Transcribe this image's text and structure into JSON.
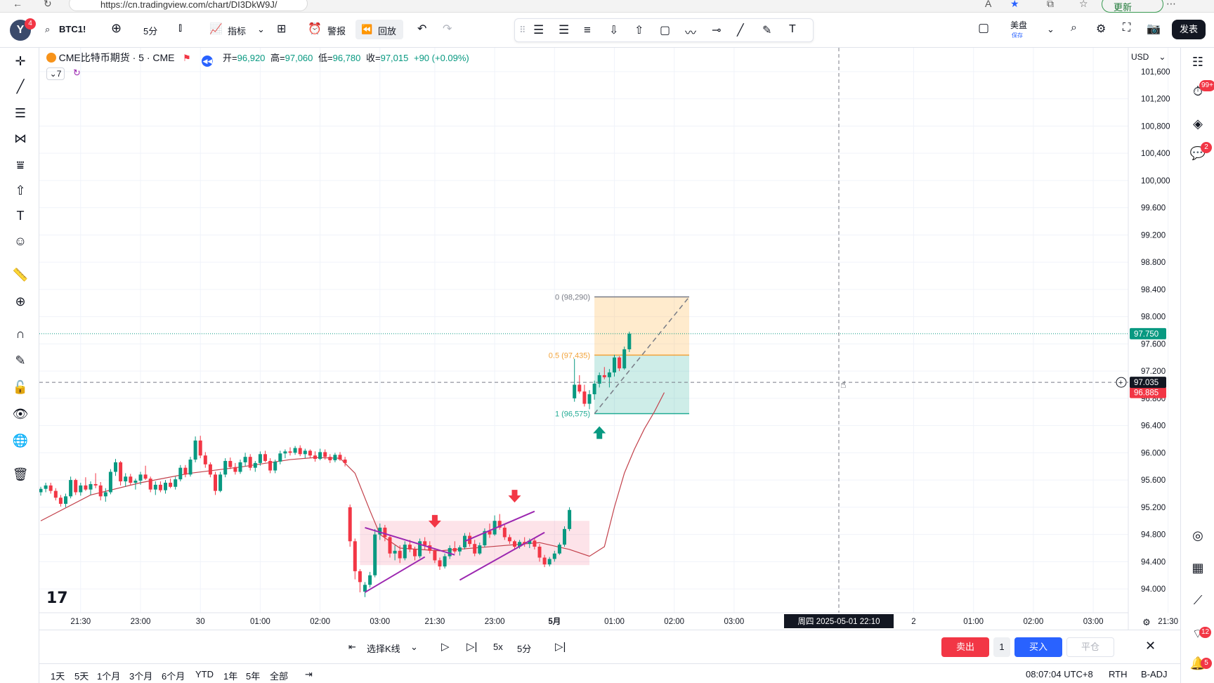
{
  "browser": {
    "url": "https://cn.tradingview.com/chart/DI3DkW9J/",
    "update_label": "更新"
  },
  "header": {
    "avatar_letter": "Y",
    "avatar_badge": "4",
    "symbol": "BTC1!",
    "interval": "5分",
    "indicators_label": "指标",
    "alert_label": "警报",
    "replay_label": "回放",
    "session_label": "美盘",
    "session_sub": "保存",
    "publish_label": "发表"
  },
  "legend": {
    "title": "CME比特币期货 · 5 · CME",
    "open_label": "开=",
    "open": "96,920",
    "high_label": "高=",
    "high": "97,060",
    "low_label": "低=",
    "low": "96,780",
    "close_label": "收=",
    "close": "97,015",
    "change": "+90 (+0.09%)",
    "indicator_count": "7"
  },
  "right_sidebar": {
    "badge_top": "99+",
    "badge_chat": "2",
    "badge_feed": "12",
    "badge_bell": "5"
  },
  "chart_data": {
    "type": "candlestick",
    "currency": "USD",
    "y_ticks": [
      94000,
      94400,
      94800,
      95200,
      95600,
      96000,
      96400,
      96800,
      97200,
      97600,
      98000,
      98400,
      98800,
      99200,
      99600,
      100000,
      100400,
      100800,
      101200,
      101600
    ],
    "y_tick_labels": [
      "94.000",
      "94.400",
      "94.800",
      "95.200",
      "95.600",
      "96.000",
      "96.400",
      "96.800",
      "97.200",
      "97.600",
      "98.000",
      "98.400",
      "98.800",
      "99.200",
      "99.600",
      "100,000",
      "100,400",
      "100,800",
      "101,200",
      "101,600"
    ],
    "ylim": [
      93650,
      101950
    ],
    "x_ticks": [
      {
        "bar": 8,
        "label": "21:30"
      },
      {
        "bar": 20,
        "label": "23:00"
      },
      {
        "bar": 32,
        "label": "30"
      },
      {
        "bar": 44,
        "label": "01:00"
      },
      {
        "bar": 56,
        "label": "02:00"
      },
      {
        "bar": 68,
        "label": "03:00"
      },
      {
        "bar": 79,
        "label": "21:30"
      },
      {
        "bar": 91,
        "label": "23:00"
      },
      {
        "bar": 103,
        "label": "5月"
      },
      {
        "bar": 115,
        "label": "01:00"
      },
      {
        "bar": 127,
        "label": "02:00"
      },
      {
        "bar": 139,
        "label": "03:00"
      },
      {
        "bar": 175,
        "label": "2"
      },
      {
        "bar": 187,
        "label": "01:00"
      },
      {
        "bar": 199,
        "label": "02:00"
      },
      {
        "bar": 211,
        "label": "03:00"
      },
      {
        "bar": 226,
        "label": "21:30"
      }
    ],
    "crosshair": {
      "bar": 160,
      "price": 97035,
      "price_label": "97.035",
      "time_label": "周四 2025-05-01   22:10"
    },
    "last_price": {
      "value": 97750,
      "label": "97.750"
    },
    "ma_price": {
      "value": 96885,
      "label": "96.885"
    },
    "candles": [
      [
        95420,
        95500,
        95370,
        95470
      ],
      [
        95470,
        95560,
        95420,
        95520
      ],
      [
        95520,
        95560,
        95400,
        95440
      ],
      [
        95440,
        95480,
        95300,
        95340
      ],
      [
        95340,
        95380,
        95210,
        95250
      ],
      [
        95250,
        95400,
        95200,
        95360
      ],
      [
        95360,
        95650,
        95330,
        95600
      ],
      [
        95600,
        95620,
        95380,
        95420
      ],
      [
        95420,
        95560,
        95370,
        95520
      ],
      [
        95520,
        95640,
        95440,
        95460
      ],
      [
        95460,
        95580,
        95380,
        95540
      ],
      [
        95540,
        95700,
        95480,
        95520
      ],
      [
        95520,
        95570,
        95300,
        95360
      ],
      [
        95360,
        95480,
        95280,
        95420
      ],
      [
        95420,
        95760,
        95390,
        95720
      ],
      [
        95720,
        95910,
        95660,
        95860
      ],
      [
        95860,
        95880,
        95520,
        95580
      ],
      [
        95580,
        95700,
        95500,
        95650
      ],
      [
        95650,
        95690,
        95520,
        95560
      ],
      [
        95560,
        95620,
        95460,
        95590
      ],
      [
        95590,
        95720,
        95530,
        95680
      ],
      [
        95680,
        95810,
        95600,
        95620
      ],
      [
        95620,
        95650,
        95420,
        95460
      ],
      [
        95460,
        95580,
        95380,
        95530
      ],
      [
        95530,
        95580,
        95420,
        95450
      ],
      [
        95450,
        95600,
        95400,
        95560
      ],
      [
        95560,
        95620,
        95480,
        95500
      ],
      [
        95500,
        95650,
        95460,
        95610
      ],
      [
        95610,
        95820,
        95580,
        95780
      ],
      [
        95780,
        95820,
        95640,
        95680
      ],
      [
        95680,
        95940,
        95650,
        95900
      ],
      [
        95900,
        96240,
        95860,
        96180
      ],
      [
        96180,
        96250,
        95920,
        95960
      ],
      [
        95960,
        96010,
        95780,
        95830
      ],
      [
        95830,
        95860,
        95640,
        95680
      ],
      [
        95680,
        95720,
        95380,
        95440
      ],
      [
        95440,
        95720,
        95420,
        95680
      ],
      [
        95680,
        95920,
        95640,
        95880
      ],
      [
        95880,
        95930,
        95760,
        95790
      ],
      [
        95790,
        95850,
        95680,
        95720
      ],
      [
        95720,
        95900,
        95690,
        95860
      ],
      [
        95860,
        96000,
        95800,
        95940
      ],
      [
        95940,
        95980,
        95740,
        95780
      ],
      [
        95780,
        95880,
        95720,
        95850
      ],
      [
        95850,
        96020,
        95810,
        95980
      ],
      [
        95980,
        96030,
        95860,
        95880
      ],
      [
        95880,
        95920,
        95700,
        95740
      ],
      [
        95740,
        95900,
        95700,
        95870
      ],
      [
        95870,
        96030,
        95830,
        95990
      ],
      [
        95990,
        96050,
        95920,
        96020
      ],
      [
        96020,
        96080,
        95960,
        96000
      ],
      [
        96000,
        96100,
        95970,
        96070
      ],
      [
        96070,
        96110,
        95950,
        95980
      ],
      [
        95980,
        96060,
        95920,
        96030
      ],
      [
        96030,
        96050,
        95920,
        95960
      ],
      [
        95960,
        96020,
        95870,
        95910
      ],
      [
        95910,
        96060,
        95890,
        96010
      ],
      [
        96010,
        96050,
        95900,
        95940
      ],
      [
        95940,
        95980,
        95850,
        95890
      ],
      [
        95890,
        96000,
        95860,
        95970
      ],
      [
        95970,
        96010,
        95880,
        95900
      ],
      [
        95900,
        95940,
        95800,
        95850
      ],
      [
        95200,
        95240,
        94620,
        94700
      ],
      [
        94700,
        94740,
        94140,
        94260
      ],
      [
        94260,
        94290,
        93950,
        94100
      ],
      [
        93960,
        94100,
        93880,
        94060
      ],
      [
        94060,
        94250,
        94020,
        94200
      ],
      [
        94200,
        94880,
        94170,
        94800
      ],
      [
        94800,
        94960,
        94720,
        94900
      ],
      [
        94900,
        94940,
        94700,
        94760
      ],
      [
        94760,
        94800,
        94460,
        94520
      ],
      [
        94520,
        94640,
        94420,
        94560
      ],
      [
        94560,
        94640,
        94380,
        94450
      ],
      [
        94450,
        94700,
        94420,
        94650
      ],
      [
        94650,
        94720,
        94540,
        94580
      ],
      [
        94580,
        94620,
        94420,
        94480
      ],
      [
        94480,
        94740,
        94450,
        94700
      ],
      [
        94700,
        94760,
        94580,
        94640
      ],
      [
        94640,
        94700,
        94520,
        94560
      ],
      [
        94560,
        94600,
        94380,
        94420
      ],
      [
        94420,
        94460,
        94280,
        94330
      ],
      [
        94330,
        94520,
        94300,
        94480
      ],
      [
        94480,
        94640,
        94440,
        94600
      ],
      [
        94600,
        94700,
        94520,
        94550
      ],
      [
        94550,
        94640,
        94490,
        94610
      ],
      [
        94610,
        94820,
        94580,
        94780
      ],
      [
        94780,
        94830,
        94620,
        94660
      ],
      [
        94660,
        94720,
        94480,
        94520
      ],
      [
        94520,
        94680,
        94500,
        94640
      ],
      [
        94640,
        94890,
        94610,
        94850
      ],
      [
        94850,
        94960,
        94750,
        94800
      ],
      [
        94800,
        95080,
        94780,
        95000
      ],
      [
        95000,
        95100,
        94870,
        94900
      ],
      [
        94900,
        94940,
        94720,
        94760
      ],
      [
        94760,
        94800,
        94660,
        94700
      ],
      [
        94700,
        94720,
        94580,
        94620
      ],
      [
        94620,
        94720,
        94590,
        94690
      ],
      [
        94690,
        94760,
        94620,
        94660
      ],
      [
        94660,
        94740,
        94600,
        94710
      ],
      [
        94710,
        94740,
        94580,
        94620
      ],
      [
        94620,
        94660,
        94400,
        94460
      ],
      [
        94460,
        94500,
        94320,
        94360
      ],
      [
        94360,
        94470,
        94330,
        94440
      ],
      [
        94440,
        94560,
        94400,
        94520
      ],
      [
        94520,
        94680,
        94500,
        94650
      ],
      [
        94650,
        94920,
        94620,
        94880
      ],
      [
        94880,
        95200,
        94850,
        95160
      ],
      [
        96800,
        97380,
        96750,
        97000
      ],
      [
        97000,
        97140,
        96870,
        96900
      ],
      [
        96900,
        97000,
        96680,
        96720
      ],
      [
        96720,
        96920,
        96640,
        96860
      ],
      [
        96860,
        97060,
        96780,
        97015
      ],
      [
        97015,
        97180,
        96960,
        97140
      ],
      [
        97140,
        97260,
        97080,
        97110
      ],
      [
        97110,
        97230,
        96960,
        97180
      ],
      [
        97180,
        97440,
        97120,
        97400
      ],
      [
        97400,
        97420,
        97200,
        97240
      ],
      [
        97240,
        97560,
        97220,
        97520
      ],
      [
        97520,
        97780,
        97480,
        97750
      ]
    ],
    "ma_line": [
      [
        0,
        95000
      ],
      [
        10,
        95380
      ],
      [
        20,
        95560
      ],
      [
        30,
        95700
      ],
      [
        40,
        95790
      ],
      [
        50,
        95900
      ],
      [
        55,
        95930
      ],
      [
        60,
        95920
      ],
      [
        63,
        95700
      ],
      [
        66,
        95150
      ],
      [
        68,
        94800
      ],
      [
        72,
        94600
      ],
      [
        80,
        94560
      ],
      [
        90,
        94620
      ],
      [
        100,
        94680
      ],
      [
        106,
        94580
      ],
      [
        110,
        94480
      ],
      [
        113,
        94620
      ],
      [
        115,
        95200
      ],
      [
        117,
        95700
      ],
      [
        119,
        96050
      ],
      [
        121,
        96350
      ],
      [
        123,
        96600
      ],
      [
        125,
        96885
      ]
    ],
    "fib_box": {
      "start_bar": 111,
      "end_bar": 130,
      "levels": [
        {
          "ratio": "0",
          "price": 98290,
          "label": "0 (98,290)",
          "color": "#787b86"
        },
        {
          "ratio": "0.5",
          "price": 97435,
          "label": "0.5 (97,435)",
          "color": "#f2a33a"
        },
        {
          "ratio": "1",
          "price": 96575,
          "label": "1 (96,575)",
          "color": "#22ab94"
        }
      ]
    },
    "range_box": {
      "start_bar": 64,
      "end_bar": 110,
      "top": 95000,
      "bottom": 94350
    },
    "trendlines": [
      {
        "from": [
          65,
          94900
        ],
        "to": [
          83,
          94500
        ]
      },
      {
        "from": [
          65,
          93950
        ],
        "to": [
          77,
          94470
        ]
      },
      {
        "from": [
          85,
          94700
        ],
        "to": [
          99,
          95140
        ]
      },
      {
        "from": [
          84,
          94130
        ],
        "to": [
          101,
          94830
        ]
      }
    ],
    "arrows": [
      {
        "bar": 79,
        "price": 94900,
        "dir": "down"
      },
      {
        "bar": 95,
        "price": 95270,
        "dir": "down"
      },
      {
        "bar": 112,
        "price": 96390,
        "dir": "up"
      }
    ],
    "projection": {
      "from": [
        111,
        96575
      ],
      "to": [
        130,
        98290
      ]
    }
  },
  "bottom": {
    "select_bar_label": "选择K线",
    "speed": "5x",
    "interval": "5分",
    "sell_label": "卖出",
    "qty": "1",
    "buy_label": "买入",
    "close_label": "平仓"
  },
  "footer": {
    "ranges": [
      "1天",
      "5天",
      "1个月",
      "3个月",
      "6个月",
      "YTD",
      "1年",
      "5年",
      "全部"
    ],
    "time": "08:07:04 UTC+8",
    "session": "RTH",
    "adj": "B-ADJ"
  }
}
